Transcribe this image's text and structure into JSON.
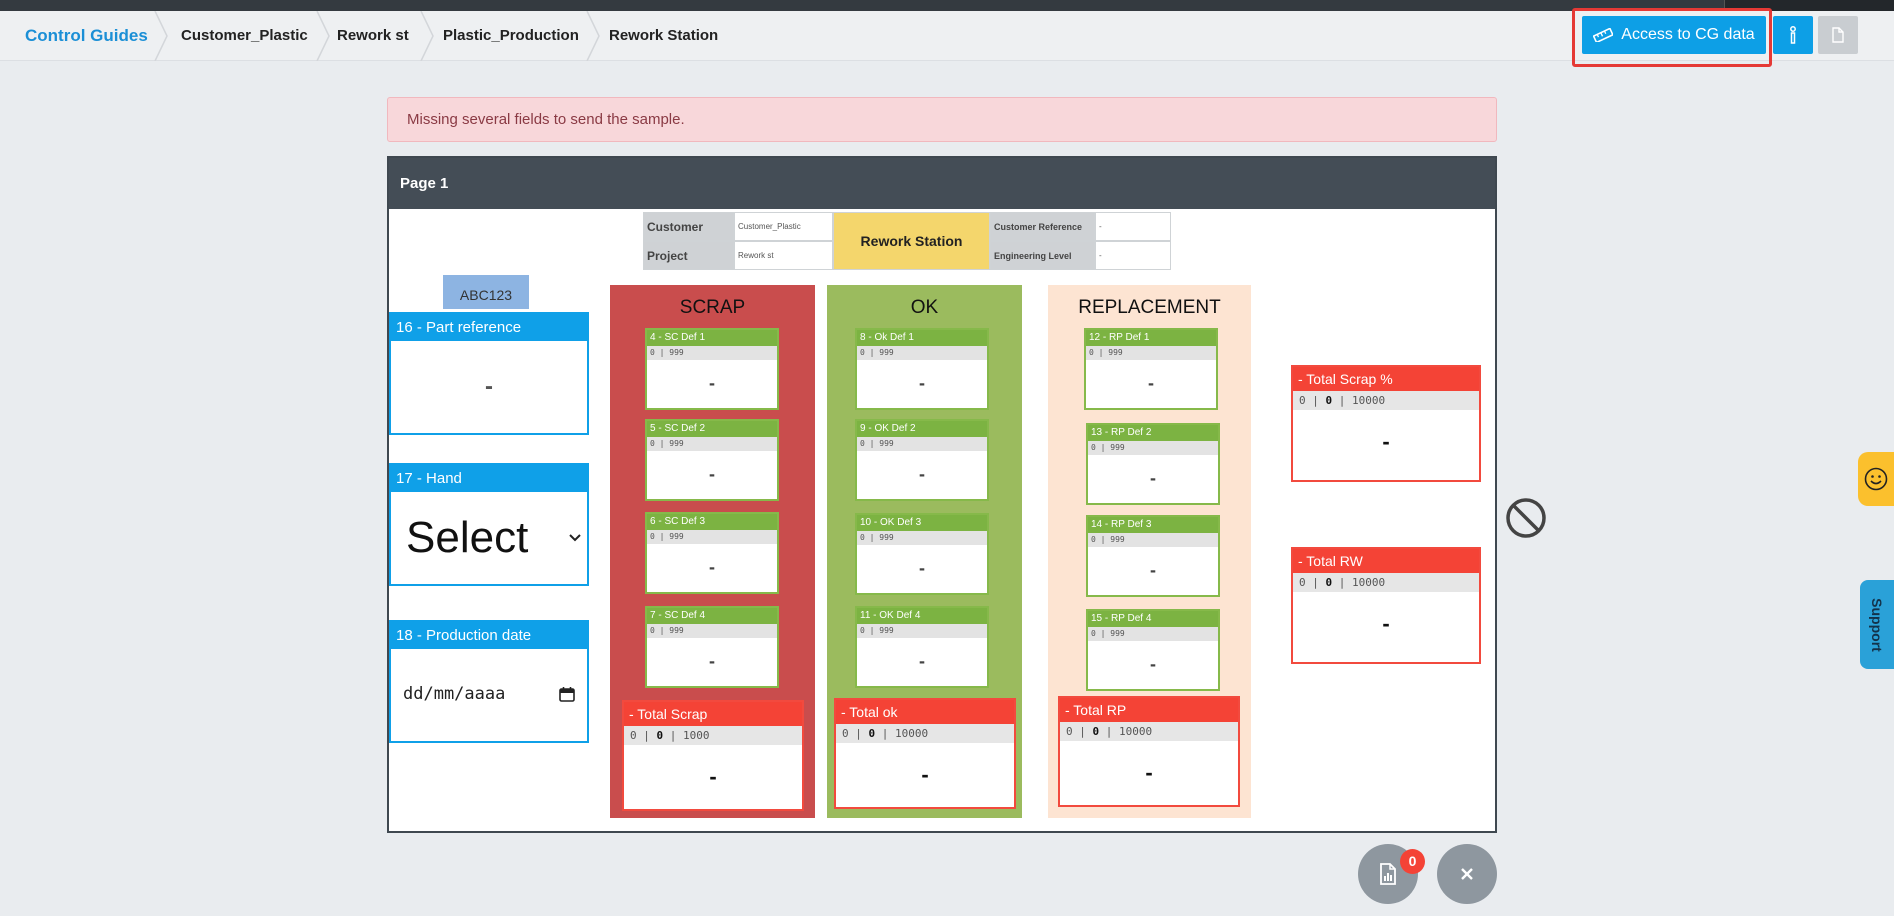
{
  "breadcrumb": {
    "home": "Control Guides",
    "items": [
      "Customer_Plastic",
      "Rework st",
      "Plastic_Production",
      "Rework Station"
    ]
  },
  "toolbar": {
    "cg_button_label": "Access to CG data",
    "cg_icon": "ruler-icon",
    "info_icon": "info-icon",
    "doc_icon": "document-icon"
  },
  "alert": {
    "message": "Missing several fields to send the sample."
  },
  "page": {
    "header": "Page 1",
    "info": {
      "customer_label": "Customer",
      "customer_value": "Customer_Plastic",
      "project_label": "Project",
      "project_value": "Rework st",
      "station": "Rework Station",
      "customer_ref_label": "Customer Reference",
      "customer_ref_value": "-",
      "eng_level_label": "Engineering Level",
      "eng_level_value": "-"
    },
    "tag": "ABC123",
    "fields": {
      "part_reference": {
        "label": "16 - Part reference",
        "value": "-"
      },
      "hand": {
        "label": "17 - Hand",
        "value": "Select"
      },
      "production_date": {
        "label": "18 - Production date",
        "placeholder": "dd/mm/aaaa"
      }
    },
    "columns": {
      "scrap": {
        "title": "SCRAP",
        "defects": [
          {
            "label": "4 - SC Def 1",
            "range": "0 | 999",
            "value": "-"
          },
          {
            "label": "5 - SC Def 2",
            "range": "0 | 999",
            "value": "-"
          },
          {
            "label": "6 - SC Def 3",
            "range": "0 | 999",
            "value": "-"
          },
          {
            "label": "7 - SC Def 4",
            "range": "0 | 999",
            "value": "-"
          }
        ],
        "total": {
          "label": "- Total Scrap",
          "min": "0",
          "target": "0",
          "max": "1000",
          "value": "-"
        }
      },
      "ok": {
        "title": "OK",
        "defects": [
          {
            "label": "8 - Ok Def 1",
            "range": "0 | 999",
            "value": "-"
          },
          {
            "label": "9 - OK Def 2",
            "range": "0 | 999",
            "value": "-"
          },
          {
            "label": "10 - OK Def 3",
            "range": "0 | 999",
            "value": "-"
          },
          {
            "label": "11 - OK Def 4",
            "range": "0 | 999",
            "value": "-"
          }
        ],
        "total": {
          "label": "- Total ok",
          "min": "0",
          "target": "0",
          "max": "10000",
          "value": "-"
        }
      },
      "replacement": {
        "title": "REPLACEMENT",
        "defects": [
          {
            "label": "12 - RP Def 1",
            "range": "0 | 999",
            "value": "-"
          },
          {
            "label": "13 - RP Def 2",
            "range": "0 | 999",
            "value": "-"
          },
          {
            "label": "14 - RP Def 3",
            "range": "0 | 999",
            "value": "-"
          },
          {
            "label": "15 - RP Def 4",
            "range": "0 | 999",
            "value": "-"
          }
        ],
        "total": {
          "label": "- Total RP",
          "min": "0",
          "target": "0",
          "max": "10000",
          "value": "-"
        }
      }
    },
    "totals": {
      "scrap_pct": {
        "label": "- Total Scrap %",
        "min": "0",
        "target": "0",
        "max": "10000",
        "value": "-"
      },
      "rw": {
        "label": "- Total RW",
        "min": "0",
        "target": "0",
        "max": "10000",
        "value": "-"
      }
    }
  },
  "side": {
    "support_label": "Support",
    "feedback_icon": "smiley-icon"
  },
  "fabs": {
    "badge_count": "0",
    "report_icon": "report-icon",
    "close_icon": "close-icon"
  },
  "colors": {
    "accent": "#0d9fe6",
    "scrap": "#c94d4d",
    "ok": "#9bbb5e",
    "replacement": "#fde4d2",
    "defect_header": "#7cb342",
    "total_header": "#f44336"
  }
}
